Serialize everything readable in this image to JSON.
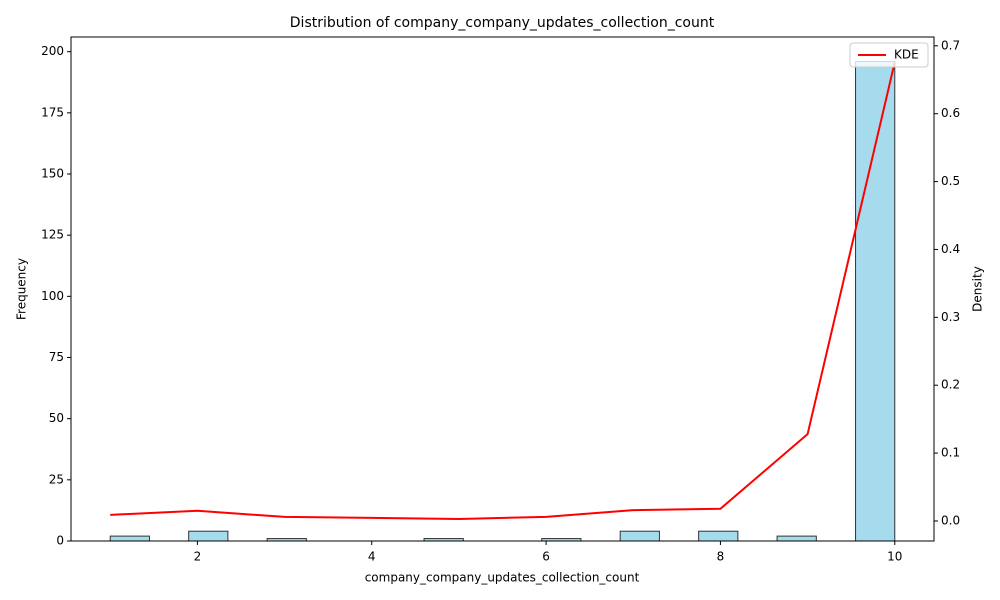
{
  "chart_data": {
    "type": "histogram",
    "title": "Distribution of company_company_updates_collection_count",
    "x_label": "company_company_updates_collection_count",
    "y_label": "Frequency",
    "y2_label": "Density",
    "bins": [
      1,
      1.45,
      1.9,
      2.35,
      2.8,
      3.25,
      3.7,
      4.15,
      4.6,
      5.05,
      5.5,
      5.95,
      6.4,
      6.85,
      7.3,
      7.75,
      8.2,
      8.65,
      9.1,
      9.55,
      10
    ],
    "values": [
      2,
      0,
      4,
      0,
      1,
      0,
      0,
      0,
      1,
      0,
      0,
      1,
      0,
      4,
      0,
      4,
      0,
      2,
      0,
      196
    ],
    "color": "#a6dbee",
    "edge_color": "#333333",
    "series": [
      {
        "name": "KDE",
        "color": "#ff0000",
        "axis": "y2",
        "x": [
          1,
          2,
          3,
          4,
          5,
          6,
          7,
          8,
          9,
          10
        ],
        "values": [
          0.009,
          0.015,
          0.006,
          0.0045,
          0.003,
          0.006,
          0.016,
          0.018,
          0.128,
          0.676
        ]
      }
    ],
    "xlim": [
      0.55,
      10.45
    ],
    "xticks": [
      2,
      4,
      6,
      8,
      10
    ],
    "ylim": [
      0,
      206
    ],
    "yticks": [
      0,
      25,
      50,
      75,
      100,
      125,
      150,
      175,
      200
    ],
    "y2lim": [
      -0.0295,
      0.713
    ],
    "y2ticks": [
      {
        "value": 0,
        "label": "0.0"
      },
      0.1,
      0.2,
      0.3,
      0.4,
      0.5,
      0.6,
      0.7
    ],
    "legend": "upper right"
  }
}
